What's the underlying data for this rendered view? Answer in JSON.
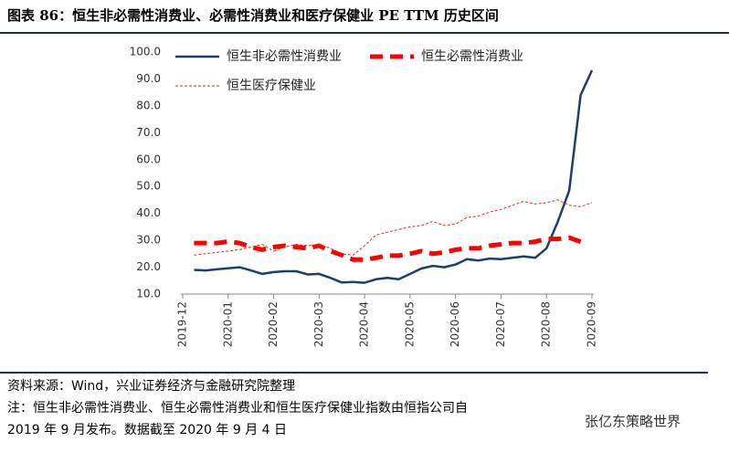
{
  "chart_data": {
    "type": "line",
    "title": "图表 86：恒生非必需性消费业、必需性消费业和医疗保健业 PE TTM 历史区间",
    "categories": [
      "2019-12",
      null,
      null,
      null,
      "2020-01",
      null,
      null,
      null,
      "2020-02",
      null,
      null,
      null,
      "2020-03",
      null,
      null,
      null,
      "2020-04",
      null,
      null,
      null,
      "2020-05",
      null,
      null,
      null,
      "2020-06",
      null,
      null,
      null,
      "2020-07",
      null,
      null,
      null,
      "2020-08",
      null,
      null,
      null,
      "2020-09"
    ],
    "series": [
      {
        "name": "恒生非必需性消费业",
        "color": "#1f3f6b",
        "style": "solid",
        "values": [
          null,
          19.0,
          18.8,
          19.2,
          19.6,
          20.0,
          18.8,
          17.5,
          18.2,
          18.5,
          18.5,
          17.3,
          17.5,
          16.0,
          14.3,
          14.5,
          14.2,
          15.5,
          16.0,
          15.5,
          17.5,
          19.5,
          20.5,
          20.0,
          21.0,
          23.0,
          22.5,
          23.2,
          23.0,
          23.5,
          24.0,
          23.5,
          27.0,
          37.0,
          48.5,
          84.0,
          93.2
        ]
      },
      {
        "name": "恒生必需性消费业",
        "color": "#ff0000",
        "style": "dashed",
        "values": [
          null,
          29,
          29,
          29,
          29.5,
          29,
          27.5,
          26.5,
          27.5,
          28,
          27.5,
          27,
          28,
          26,
          24.5,
          22.8,
          22.8,
          23.5,
          24.3,
          24.3,
          25,
          26,
          25,
          25.5,
          26.5,
          27,
          27,
          28,
          28.5,
          29,
          29,
          29.5,
          30.5,
          30.5,
          31,
          29.5,
          null
        ]
      },
      {
        "name": "恒生医疗保健业",
        "color": "#e0301e",
        "style": "dotted",
        "values": [
          null,
          24.5,
          25,
          25.5,
          26,
          26.5,
          27.5,
          28.5,
          26,
          27.5,
          28.5,
          28,
          28.5,
          27,
          25,
          24.5,
          28,
          32,
          33,
          34,
          35,
          35.5,
          37,
          35.5,
          36,
          38.5,
          39,
          40.5,
          41.5,
          43,
          44.5,
          43.5,
          44,
          45,
          43,
          42.5,
          44
        ]
      }
    ],
    "ylim": [
      10,
      100
    ],
    "yticks": [
      {
        "value": 10,
        "label": "10.0"
      },
      {
        "value": 20,
        "label": "20.0"
      },
      {
        "value": 30,
        "label": "30.0"
      },
      {
        "value": 40,
        "label": "40.0"
      },
      {
        "value": 50,
        "label": "50.0"
      },
      {
        "value": 60,
        "label": "60.0"
      },
      {
        "value": 70,
        "label": "70.0"
      },
      {
        "value": 80,
        "label": "80.0"
      },
      {
        "value": 90,
        "label": "90.0"
      },
      {
        "value": 100,
        "label": "100.0"
      }
    ],
    "grid": false,
    "legend": "top-left",
    "source": "资料来源：Wind，兴业证券经济与金融研究院整理",
    "note": [
      "注：恒生非必需性消费业、恒生必需性消费业和恒生医疗保健业指数由恒指公司自",
      "2019 年 9 月发布。数据截至 2020 年 9 月 4 日"
    ],
    "watermark": "张亿东策略世界"
  }
}
